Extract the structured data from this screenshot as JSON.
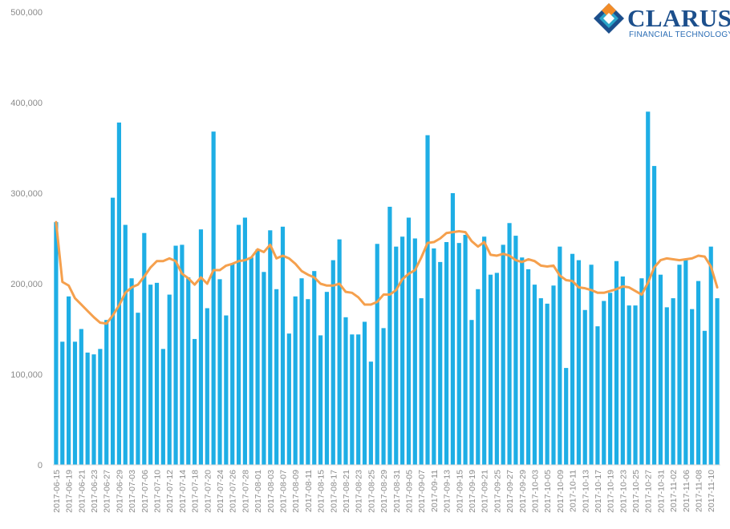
{
  "brand": {
    "name": "CLARUS",
    "tagline": "FINANCIAL TECHNOLOGY",
    "colors": {
      "navy": "#1c4f8c",
      "blue": "#2b6db5",
      "orange": "#f28c28",
      "teal": "#2aa5c9"
    }
  },
  "chart_data": {
    "type": "bar",
    "title": "",
    "xlabel": "",
    "ylabel": "",
    "ylim": [
      0,
      500000
    ],
    "yticks": [
      0,
      100000,
      200000,
      300000,
      400000,
      500000
    ],
    "ytick_labels": [
      "0",
      "100,000",
      "200,000",
      "300,000",
      "400,000",
      "500,000"
    ],
    "grid": false,
    "legend": "none",
    "colors": {
      "bars": "#1eaee5",
      "line": "#f5a04d"
    },
    "x_tick_labels": [
      "2017-06-15",
      "2017-06-19",
      "2017-06-21",
      "2017-06-23",
      "2017-06-27",
      "2017-06-29",
      "2017-07-03",
      "2017-07-06",
      "2017-07-10",
      "2017-07-12",
      "2017-07-14",
      "2017-07-18",
      "2017-07-20",
      "2017-07-24",
      "2017-07-26",
      "2017-07-28",
      "2017-08-01",
      "2017-08-03",
      "2017-08-07",
      "2017-08-09",
      "2017-08-11",
      "2017-08-15",
      "2017-08-17",
      "2017-08-21",
      "2017-08-23",
      "2017-08-25",
      "2017-08-29",
      "2017-08-31",
      "2017-09-05",
      "2017-09-07",
      "2017-09-11",
      "2017-09-13",
      "2017-09-15",
      "2017-09-19",
      "2017-09-21",
      "2017-09-25",
      "2017-09-27",
      "2017-09-29",
      "2017-10-03",
      "2017-10-05",
      "2017-10-09",
      "2017-10-11",
      "2017-10-13",
      "2017-10-17",
      "2017-10-19",
      "2017-10-23",
      "2017-10-25",
      "2017-10-27",
      "2017-10-31",
      "2017-11-02",
      "2017-11-06",
      "2017-11-08",
      "2017-11-10"
    ],
    "series": [
      {
        "type": "bar",
        "values": [
          268000,
          136000,
          186000,
          136000,
          150000,
          124000,
          122000,
          128000,
          160000,
          295000,
          378000,
          265000,
          206000,
          168000,
          256000,
          199000,
          201000,
          128000,
          188000,
          242000,
          243000,
          207000,
          139000,
          260000,
          173000,
          368000,
          205000,
          165000,
          222000,
          265000,
          273000,
          229000,
          238000,
          213000,
          259000,
          194000,
          263000,
          145000,
          186000,
          206000,
          183000,
          214000,
          143000,
          191000,
          226000,
          249000,
          163000,
          144000,
          144000,
          158000,
          114000,
          244000,
          151000,
          285000,
          241000,
          252000,
          273000,
          250000,
          184000,
          364000,
          239000,
          224000,
          246000,
          300000,
          245000,
          254000,
          160000,
          194000,
          252000,
          210000,
          212000,
          243000,
          267000,
          253000,
          229000,
          216000,
          199000,
          184000,
          178000,
          198000,
          241000,
          107000,
          233000,
          226000,
          171000,
          221000,
          153000,
          181000,
          190000,
          225000,
          208000,
          176000,
          176000,
          206000,
          390000,
          330000,
          210000,
          174000,
          184000,
          221000,
          227000,
          172000,
          203000,
          148000,
          241000,
          184000
        ]
      },
      {
        "type": "line",
        "values": [
          268000,
          202000,
          198000,
          184000,
          177000,
          170000,
          163000,
          157000,
          156000,
          165000,
          176000,
          190000,
          196000,
          199000,
          208000,
          218000,
          225000,
          225000,
          228000,
          225000,
          211000,
          206000,
          199000,
          207000,
          200000,
          215000,
          215000,
          220000,
          222000,
          225000,
          226000,
          229000,
          238000,
          235000,
          243000,
          228000,
          231000,
          228000,
          222000,
          214000,
          210000,
          207000,
          200000,
          198000,
          198000,
          200000,
          191000,
          190000,
          185000,
          177000,
          177000,
          180000,
          188000,
          188000,
          193000,
          205000,
          211000,
          215000,
          229000,
          245000,
          246000,
          250000,
          256000,
          257000,
          258000,
          257000,
          247000,
          241000,
          246000,
          232000,
          231000,
          233000,
          231000,
          226000,
          224000,
          227000,
          225000,
          220000,
          219000,
          220000,
          209000,
          204000,
          203000,
          196000,
          195000,
          193000,
          190000,
          190000,
          192000,
          194000,
          197000,
          196000,
          192000,
          188000,
          201000,
          218000,
          226000,
          228000,
          227000,
          226000,
          227000,
          228000,
          231000,
          230000,
          219000,
          196000
        ]
      }
    ]
  }
}
